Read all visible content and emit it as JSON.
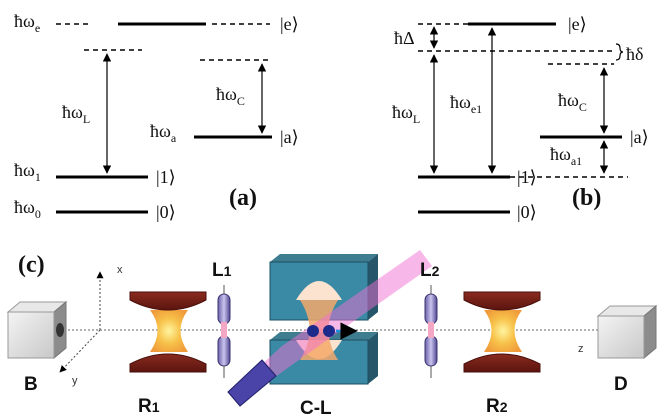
{
  "panel_a": {
    "tag": "(a)",
    "levels": {
      "e": {
        "energy": "ħω",
        "sub": "e",
        "ket": "|e⟩"
      },
      "one": {
        "energy": "ħω",
        "sub": "1",
        "ket": "|1⟩"
      },
      "zero": {
        "energy": "ħω",
        "sub": "0",
        "ket": "|0⟩"
      },
      "a": {
        "energy": "ħω",
        "sub": "a",
        "ket": "|a⟩"
      }
    },
    "transitions": {
      "laser": {
        "energy": "ħω",
        "sub": "L"
      },
      "cavity": {
        "energy": "ħω",
        "sub": "C"
      }
    }
  },
  "panel_b": {
    "tag": "(b)",
    "kets": {
      "e": "|e⟩",
      "one": "|1⟩",
      "zero": "|0⟩",
      "a": "|a⟩"
    },
    "delta": "ħΔ",
    "small_delta": "ħδ",
    "transitions": {
      "laser": {
        "energy": "ħω",
        "sub": "L"
      },
      "e1": {
        "energy": "ħω",
        "sub": "e1"
      },
      "cavity": {
        "energy": "ħω",
        "sub": "C"
      },
      "a1": {
        "energy": "ħω",
        "sub": "a1"
      }
    }
  },
  "panel_c": {
    "tag": "(c)",
    "axes": {
      "x": "x",
      "y": "y",
      "z": "z"
    },
    "devices": {
      "B": {
        "label": "B"
      },
      "R1": {
        "label": "R",
        "sub": "1"
      },
      "L1": {
        "label": "L",
        "sub": "1"
      },
      "CL": {
        "label": "C-L"
      },
      "L2": {
        "label": "L",
        "sub": "2"
      },
      "R2": {
        "label": "R",
        "sub": "2"
      },
      "D": {
        "label": "D"
      }
    }
  }
}
